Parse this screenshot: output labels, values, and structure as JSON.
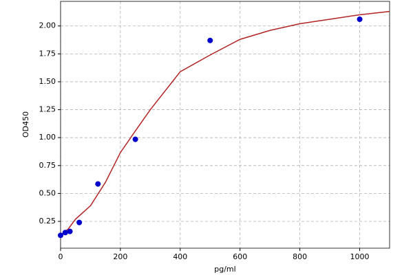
{
  "chart_data": {
    "type": "scatter",
    "xlabel": "pg/ml",
    "ylabel": "OD450",
    "xlim": [
      0,
      1100
    ],
    "xticks": [
      0,
      200,
      400,
      600,
      800,
      1000
    ],
    "ylim": [
      0.01,
      2.22
    ],
    "yticks": [
      0.25,
      {
        "value": 0.5,
        "label": "0.50"
      },
      0.75,
      {
        "value": 1,
        "label": "1.00"
      },
      1.25,
      {
        "value": 1.5,
        "label": "1.50"
      },
      1.75,
      {
        "value": 2,
        "label": "2.00"
      }
    ],
    "grid": true,
    "series": [
      {
        "type": "line",
        "color": "#b22222",
        "x": [
          0,
          25,
          50,
          100,
          150,
          200,
          250,
          300,
          400,
          500,
          600,
          700,
          800,
          900,
          1000,
          1100
        ],
        "values": [
          0.13,
          0.18,
          0.27,
          0.39,
          0.6,
          0.866,
          1.06,
          1.25,
          1.59,
          1.74,
          1.88,
          1.96,
          2.02,
          2.06,
          2.1,
          2.13
        ]
      },
      {
        "type": "scatter",
        "color": "#0000cc",
        "x": [
          0,
          15.6,
          31.25,
          62.5,
          125,
          250,
          500,
          1000
        ],
        "values": [
          0.125,
          0.15,
          0.16,
          0.24,
          0.585,
          0.985,
          1.87,
          2.06
        ]
      }
    ]
  }
}
